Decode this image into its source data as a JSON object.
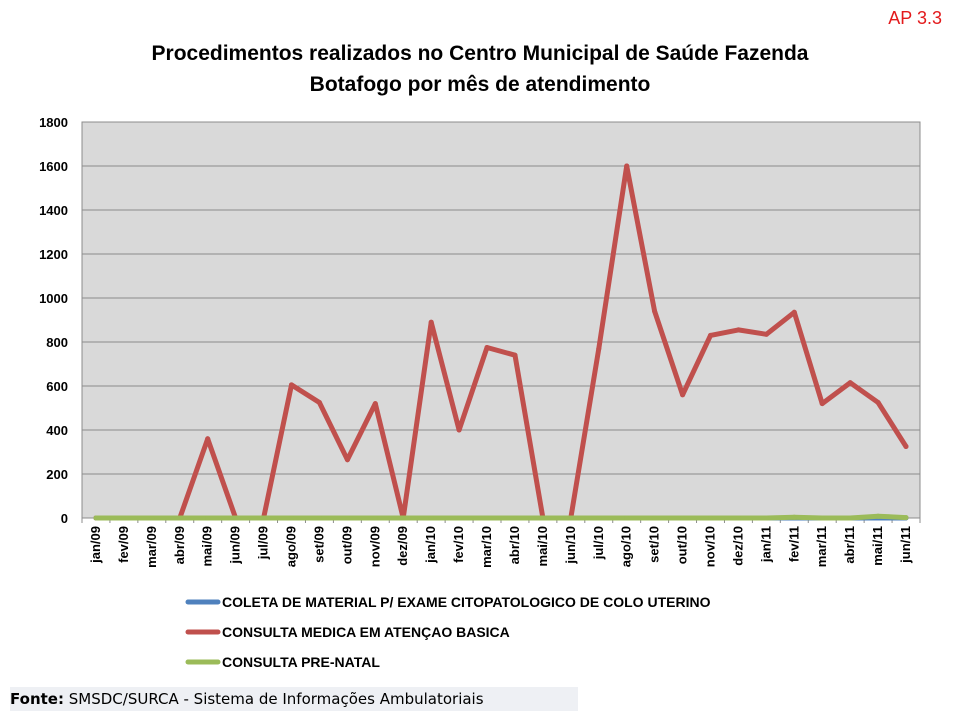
{
  "corner_tag": "AP 3.3",
  "source": {
    "prefix": "Fonte:",
    "text": "SMSDC/SURCA - Sistema de Informações Ambulatoriais"
  },
  "chart_data": {
    "type": "line",
    "title_line1": "Procedimentos realizados no Centro Municipal de Saúde Fazenda",
    "title_line2": "Botafogo por mês de atendimento",
    "xlabel": "",
    "ylabel": "",
    "ylim": [
      0,
      1800
    ],
    "yticks": [
      0,
      200,
      400,
      600,
      800,
      1000,
      1200,
      1400,
      1600,
      1800
    ],
    "grid": true,
    "legend_position": "bottom",
    "background": "#d9d9d9",
    "x": [
      "jan/09",
      "fev/09",
      "mar/09",
      "abr/09",
      "mai/09",
      "jun/09",
      "jul/09",
      "ago/09",
      "set/09",
      "out/09",
      "nov/09",
      "dez/09",
      "jan/10",
      "fev/10",
      "mar/10",
      "abr/10",
      "mai/10",
      "jun/10",
      "jul/10",
      "ago/10",
      "set/10",
      "out/10",
      "nov/10",
      "dez/10",
      "jan/11",
      "fev/11",
      "mar/11",
      "abr/11",
      "mai/11",
      "jun/11"
    ],
    "series": [
      {
        "name": "COLETA DE MATERIAL P/ EXAME CITOPATOLOGICO DE COLO UTERINO",
        "color": "#4f81bd",
        "values": [
          0,
          0,
          0,
          0,
          0,
          0,
          0,
          0,
          0,
          0,
          0,
          0,
          0,
          0,
          0,
          0,
          0,
          0,
          0,
          0,
          0,
          0,
          0,
          0,
          0,
          0,
          0,
          0,
          0,
          0
        ]
      },
      {
        "name": "CONSULTA MEDICA EM ATENÇAO BASICA",
        "color": "#c0504d",
        "values": [
          0,
          0,
          0,
          0,
          360,
          0,
          0,
          605,
          525,
          265,
          520,
          0,
          890,
          400,
          775,
          740,
          0,
          0,
          770,
          1600,
          940,
          560,
          830,
          855,
          835,
          935,
          520,
          615,
          525,
          325
        ]
      },
      {
        "name": "CONSULTA PRE-NATAL",
        "color": "#9bbb59",
        "values": [
          0,
          0,
          0,
          0,
          0,
          0,
          0,
          0,
          0,
          0,
          0,
          0,
          0,
          0,
          0,
          0,
          0,
          0,
          0,
          0,
          0,
          0,
          0,
          0,
          0,
          3,
          0,
          0,
          8,
          2
        ]
      }
    ]
  }
}
